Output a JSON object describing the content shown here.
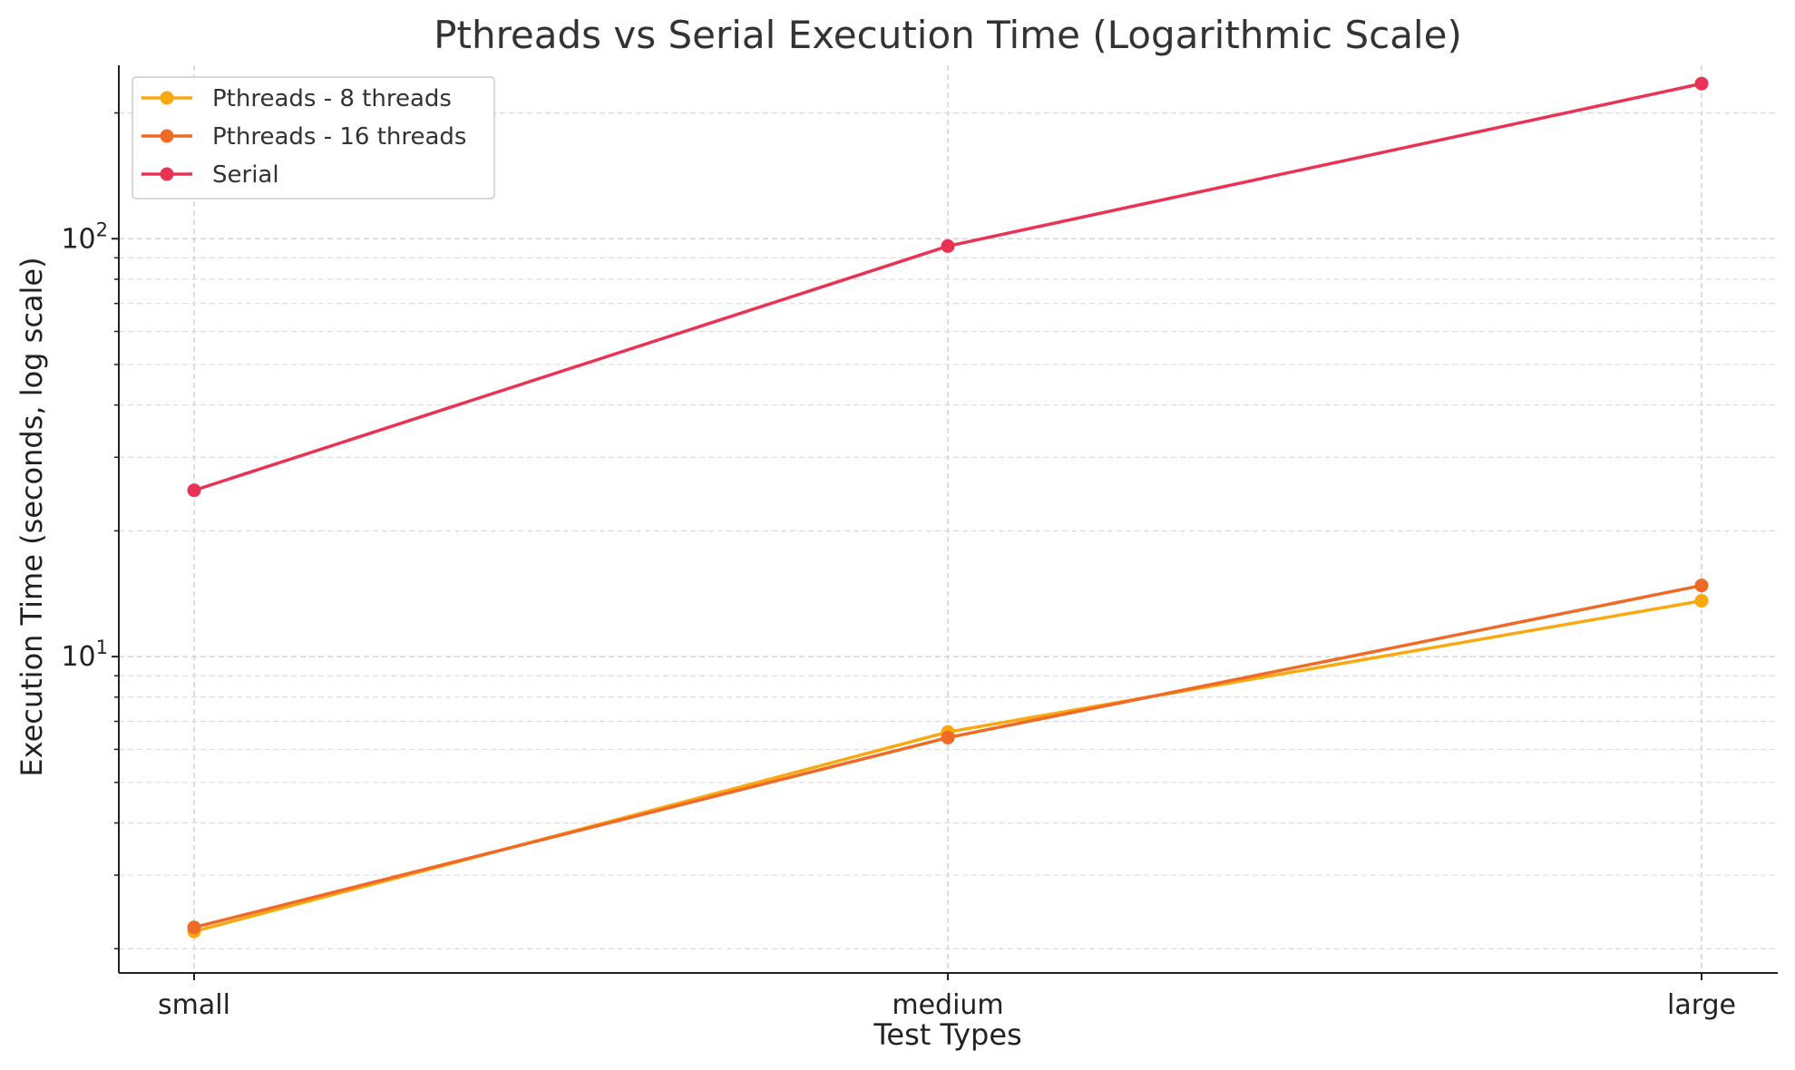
{
  "chart_data": {
    "type": "line",
    "title": "Pthreads vs Serial Execution Time (Logarithmic Scale)",
    "xlabel": "Test Types",
    "ylabel": "Execution Time (seconds, log scale)",
    "yscale": "log",
    "ylim": [
      1.75,
      260
    ],
    "categories": [
      "small",
      "medium",
      "large"
    ],
    "y_ticks": [
      {
        "value": 10,
        "base": "10",
        "exp": "1"
      },
      {
        "value": 100,
        "base": "10",
        "exp": "2"
      }
    ],
    "grid": true,
    "legend_position": "top-left",
    "series": [
      {
        "name": "Pthreads - 8 threads",
        "color": "#f9a90f",
        "values": [
          2.2,
          6.6,
          13.6
        ]
      },
      {
        "name": "Pthreads - 16 threads",
        "color": "#ef6a26",
        "values": [
          2.25,
          6.4,
          14.8
        ]
      },
      {
        "name": "Serial",
        "color": "#ea3354",
        "values": [
          25,
          96,
          235
        ]
      }
    ]
  }
}
